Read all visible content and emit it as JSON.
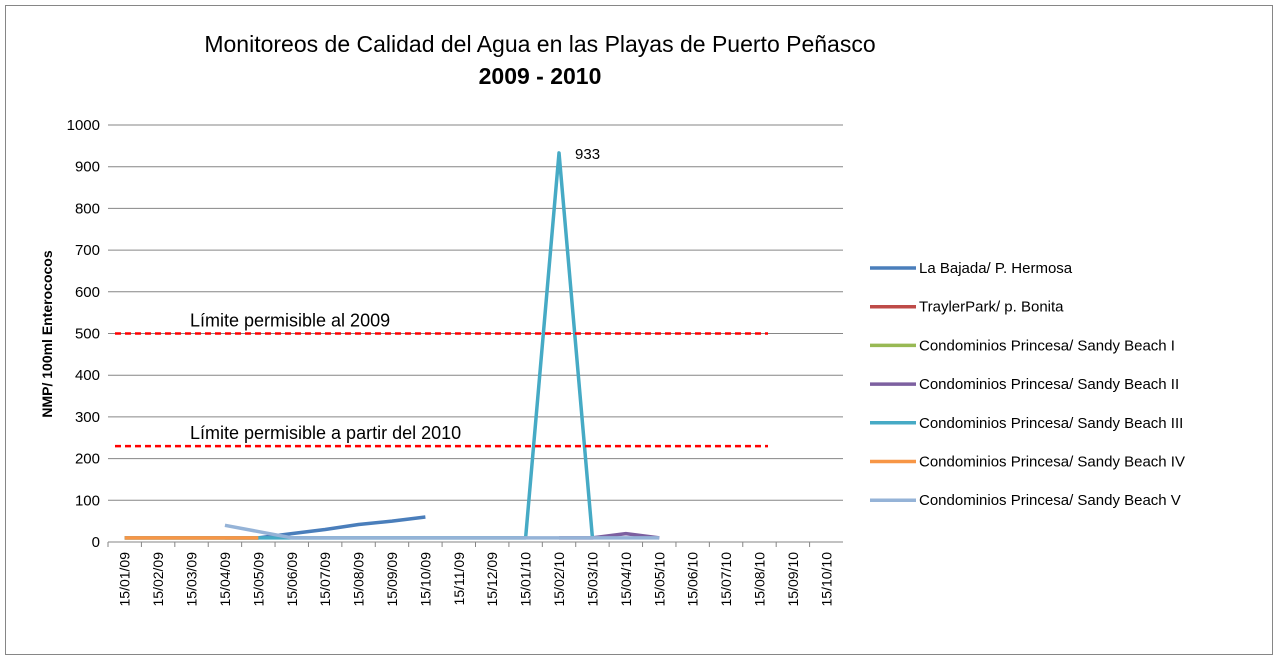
{
  "chart_data": {
    "type": "line",
    "title_lines": [
      "Monitoreos de Calidad del Agua en las Playas de Puerto Peñasco",
      "2009 - 2010"
    ],
    "y_label": "NMP/ 100ml Enterococos",
    "categories": [
      "15/01/09",
      "15/02/09",
      "15/03/09",
      "15/04/09",
      "15/05/09",
      "15/06/09",
      "15/07/09",
      "15/08/09",
      "15/09/09",
      "15/10/09",
      "15/11/09",
      "15/12/09",
      "15/01/10",
      "15/02/10",
      "15/03/10",
      "15/04/10",
      "15/05/10",
      "15/06/10",
      "15/07/10",
      "15/08/10",
      "15/09/10",
      "15/10/10"
    ],
    "series": [
      {
        "name": "La Bajada/ P. Hermosa",
        "color": "#4a7ebb",
        "values": [
          null,
          null,
          null,
          10,
          10,
          20,
          30,
          42,
          50,
          60,
          null,
          null,
          null,
          null,
          null,
          null,
          null,
          null,
          null,
          null,
          null,
          null
        ]
      },
      {
        "name": "TraylerPark/ p. Bonita",
        "color": "#be4b48",
        "values": [
          10,
          10,
          10,
          10,
          10,
          null,
          null,
          null,
          null,
          null,
          null,
          null,
          null,
          null,
          null,
          null,
          null,
          null,
          null,
          null,
          null,
          null
        ]
      },
      {
        "name": "Condominios Princesa/ Sandy Beach I",
        "color": "#98b954",
        "values": [
          10,
          10,
          10,
          10,
          10,
          null,
          null,
          null,
          null,
          null,
          null,
          null,
          null,
          null,
          null,
          null,
          null,
          null,
          null,
          null,
          null,
          null
        ]
      },
      {
        "name": "Condominios Princesa/ Sandy Beach II",
        "color": "#7d60a0",
        "values": [
          null,
          null,
          null,
          null,
          null,
          null,
          null,
          null,
          null,
          null,
          null,
          null,
          null,
          10,
          10,
          20,
          10,
          null,
          null,
          null,
          null,
          null
        ]
      },
      {
        "name": "Condominios Princesa/ Sandy Beach III",
        "color": "#46aac5",
        "values": [
          10,
          10,
          10,
          10,
          10,
          10,
          10,
          10,
          10,
          10,
          10,
          10,
          10,
          933,
          10,
          null,
          null,
          null,
          null,
          null,
          null,
          null
        ]
      },
      {
        "name": "Condominios Princesa/ Sandy Beach IV",
        "color": "#f79646",
        "values": [
          10,
          10,
          10,
          10,
          10,
          null,
          null,
          null,
          null,
          null,
          null,
          null,
          null,
          null,
          null,
          null,
          null,
          null,
          null,
          null,
          null,
          null
        ]
      },
      {
        "name": "Condominios Princesa/ Sandy Beach V",
        "color": "#95b3d7",
        "values": [
          null,
          null,
          null,
          40,
          25,
          10,
          10,
          10,
          10,
          10,
          10,
          10,
          10,
          10,
          10,
          10,
          10,
          null,
          null,
          null,
          null,
          10
        ]
      }
    ],
    "peak_label": {
      "series": 4,
      "index": 13
    },
    "reference_lines": [
      {
        "value": 500,
        "label": "Límite permisible al 2009"
      },
      {
        "value": 230,
        "label": "Límite permisible a partir del 2010"
      }
    ],
    "reference_color": "#ff0000",
    "ylim": [
      0,
      1000
    ],
    "yticks": [
      0,
      100,
      200,
      300,
      400,
      500,
      600,
      700,
      800,
      900,
      1000
    ],
    "grid": true,
    "legend": "right"
  }
}
